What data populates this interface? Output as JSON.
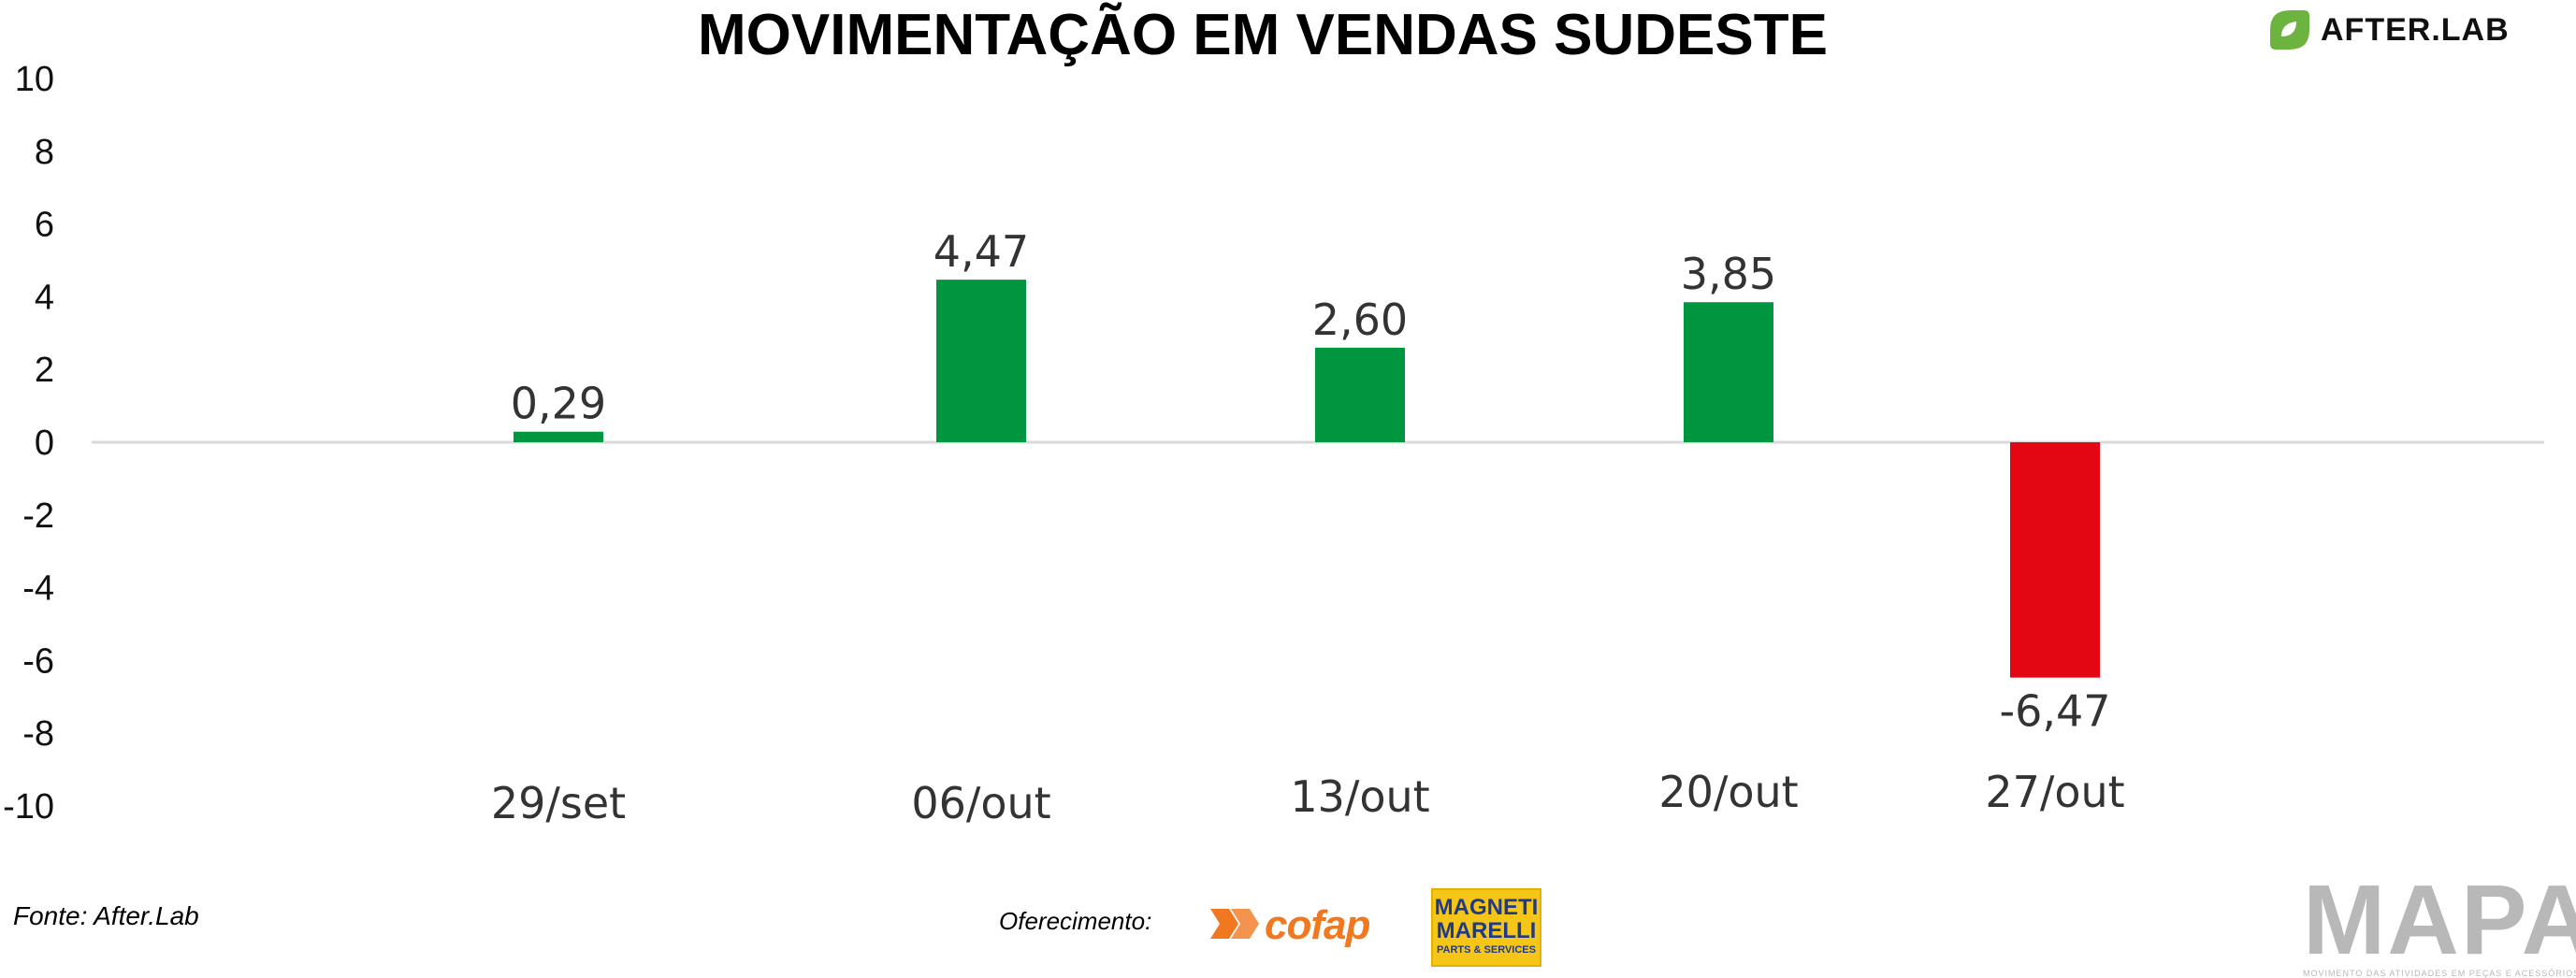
{
  "header": {
    "title": "MOVIMENTAÇÃO EM VENDAS SUDESTE"
  },
  "logo": {
    "text": "AFTER.LAB",
    "icon": "leaf-icon",
    "color": "#6cb33f"
  },
  "footer": {
    "source": "Fonte: After.Lab",
    "sponsor_label": "Oferecimento:",
    "sponsors": [
      {
        "name": "cofap",
        "icon": "cofap-arrows-icon",
        "color": "#f07820"
      },
      {
        "name": "MAGNETI\nMARELLI",
        "subtitle": "PARTS & SERVICES",
        "background": "#f5c518",
        "color": "#1f3a8a"
      }
    ],
    "mapa": {
      "text": "MAPA",
      "subtitle": "MOVIMENTO DAS ATIVIDADES EM PEÇAS E ACESSÓRIOS"
    }
  },
  "chart_data": {
    "type": "bar",
    "title": "MOVIMENTAÇÃO EM VENDAS SUDESTE",
    "categories": [
      "29/set",
      "06/out",
      "13/out",
      "20/out",
      "27/out"
    ],
    "values": [
      0.29,
      4.47,
      2.6,
      3.85,
      -6.47
    ],
    "value_labels": [
      "0,29",
      "4,47",
      "2,60",
      "3,85",
      "-6,47"
    ],
    "ylim": [
      -10,
      10
    ],
    "yticks": [
      10,
      8,
      6,
      4,
      2,
      0,
      -2,
      -4,
      -6,
      -8,
      -10
    ],
    "xlabel": "",
    "ylabel": "",
    "grid": false,
    "legend": "none",
    "colors": {
      "positive": "#009640",
      "negative": "#e30613",
      "baseline": "#d9d9d9"
    }
  }
}
